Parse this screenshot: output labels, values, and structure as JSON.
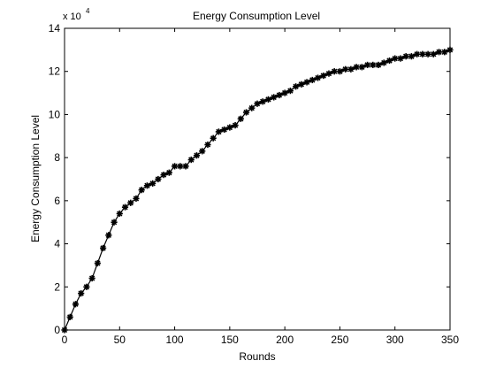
{
  "chart_data": {
    "type": "line",
    "title": "Energy Consumption Level",
    "xlabel": "Rounds",
    "ylabel": "Energy Consumption Level",
    "y_multiplier_label": "x 10",
    "y_multiplier_exponent": "4",
    "xlim": [
      0,
      350
    ],
    "ylim": [
      0,
      14
    ],
    "x_ticks": [
      0,
      50,
      100,
      150,
      200,
      250,
      300,
      350
    ],
    "y_ticks": [
      0,
      2,
      4,
      6,
      8,
      10,
      12,
      14
    ],
    "grid": false,
    "marker": "*",
    "line_color": "#000000",
    "series": [
      {
        "x": [
          0,
          5,
          10,
          15,
          20,
          25,
          30,
          35,
          40,
          45,
          50,
          55,
          60,
          65,
          70,
          75,
          80,
          85,
          90,
          95,
          100,
          105,
          110,
          115,
          120,
          125,
          130,
          135,
          140,
          145,
          150,
          155,
          160,
          165,
          170,
          175,
          180,
          185,
          190,
          195,
          200,
          205,
          210,
          215,
          220,
          225,
          230,
          235,
          240,
          245,
          250,
          255,
          260,
          265,
          270,
          275,
          280,
          285,
          290,
          295,
          300,
          305,
          310,
          315,
          320,
          325,
          330,
          335,
          340,
          345,
          350
        ],
        "y": [
          0.0,
          0.6,
          1.2,
          1.7,
          2.0,
          2.4,
          3.1,
          3.8,
          4.4,
          5.0,
          5.4,
          5.7,
          5.9,
          6.1,
          6.5,
          6.7,
          6.8,
          7.0,
          7.2,
          7.3,
          7.6,
          7.6,
          7.6,
          7.9,
          8.1,
          8.3,
          8.6,
          8.9,
          9.2,
          9.3,
          9.4,
          9.5,
          9.8,
          10.1,
          10.3,
          10.5,
          10.6,
          10.7,
          10.8,
          10.9,
          11.0,
          11.1,
          11.3,
          11.4,
          11.5,
          11.6,
          11.7,
          11.8,
          11.9,
          12.0,
          12.0,
          12.1,
          12.1,
          12.2,
          12.2,
          12.3,
          12.3,
          12.3,
          12.4,
          12.5,
          12.6,
          12.6,
          12.7,
          12.7,
          12.8,
          12.8,
          12.8,
          12.8,
          12.9,
          12.9,
          13.0
        ]
      }
    ]
  }
}
